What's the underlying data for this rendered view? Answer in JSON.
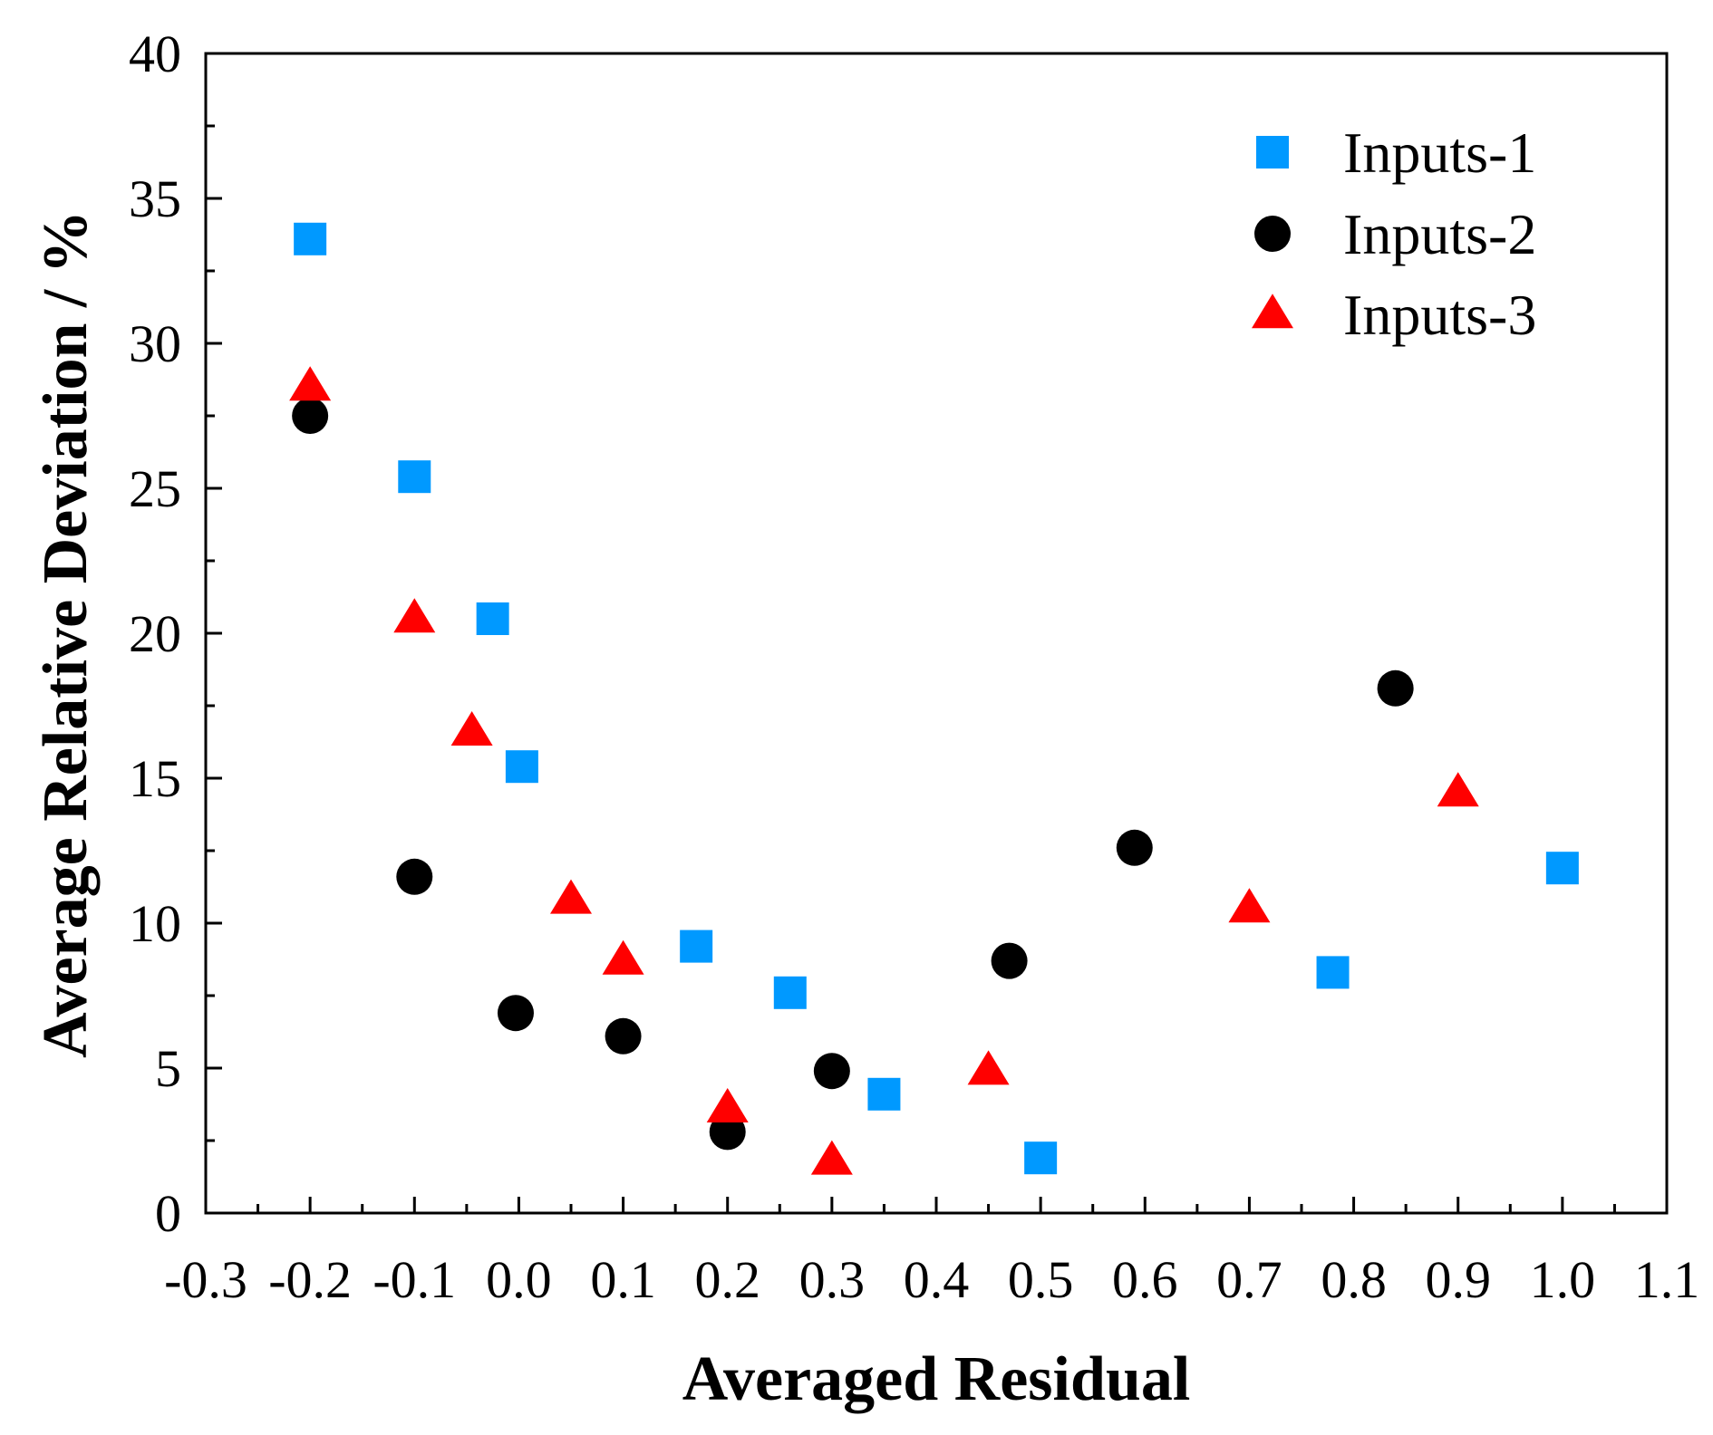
{
  "chart_data": {
    "type": "scatter",
    "title": "",
    "xlabel": "Averaged Residual",
    "ylabel": "Average Relative Deviation / %",
    "xlim": [
      -0.3,
      1.1
    ],
    "ylim": [
      0,
      40
    ],
    "x_ticks": [
      "-0.3",
      "-0.2",
      "-0.1",
      "0.0",
      "0.1",
      "0.2",
      "0.3",
      "0.4",
      "0.5",
      "0.6",
      "0.7",
      "0.8",
      "0.9",
      "1.0",
      "1.1"
    ],
    "y_ticks": [
      "0",
      "5",
      "10",
      "15",
      "20",
      "25",
      "30",
      "35",
      "40"
    ],
    "grid": false,
    "legend_position": "top-right",
    "series": [
      {
        "name": "Inputs-1",
        "marker": "square",
        "color": "#0099ff",
        "points": [
          {
            "x": -0.2,
            "y": 33.6
          },
          {
            "x": -0.1,
            "y": 25.4
          },
          {
            "x": -0.025,
            "y": 20.5
          },
          {
            "x": 0.003,
            "y": 15.4
          },
          {
            "x": 0.17,
            "y": 9.2
          },
          {
            "x": 0.26,
            "y": 7.6
          },
          {
            "x": 0.35,
            "y": 4.1
          },
          {
            "x": 0.5,
            "y": 1.9
          },
          {
            "x": 0.78,
            "y": 8.3
          },
          {
            "x": 1.0,
            "y": 11.9
          }
        ]
      },
      {
        "name": "Inputs-2",
        "marker": "circle",
        "color": "#000000",
        "points": [
          {
            "x": -0.2,
            "y": 27.5
          },
          {
            "x": -0.1,
            "y": 11.6
          },
          {
            "x": -0.003,
            "y": 6.9
          },
          {
            "x": 0.1,
            "y": 6.1
          },
          {
            "x": 0.2,
            "y": 2.8
          },
          {
            "x": 0.3,
            "y": 4.9
          },
          {
            "x": 0.47,
            "y": 8.7
          },
          {
            "x": 0.59,
            "y": 12.6
          },
          {
            "x": 0.84,
            "y": 18.1
          }
        ]
      },
      {
        "name": "Inputs-3",
        "marker": "triangle",
        "color": "#ff0000",
        "points": [
          {
            "x": -0.2,
            "y": 28.5
          },
          {
            "x": -0.1,
            "y": 20.5
          },
          {
            "x": -0.045,
            "y": 16.6
          },
          {
            "x": 0.05,
            "y": 10.8
          },
          {
            "x": 0.1,
            "y": 8.7
          },
          {
            "x": 0.2,
            "y": 3.6
          },
          {
            "x": 0.3,
            "y": 1.8
          },
          {
            "x": 0.45,
            "y": 4.9
          },
          {
            "x": 0.7,
            "y": 10.5
          },
          {
            "x": 0.9,
            "y": 14.5
          }
        ]
      }
    ]
  }
}
